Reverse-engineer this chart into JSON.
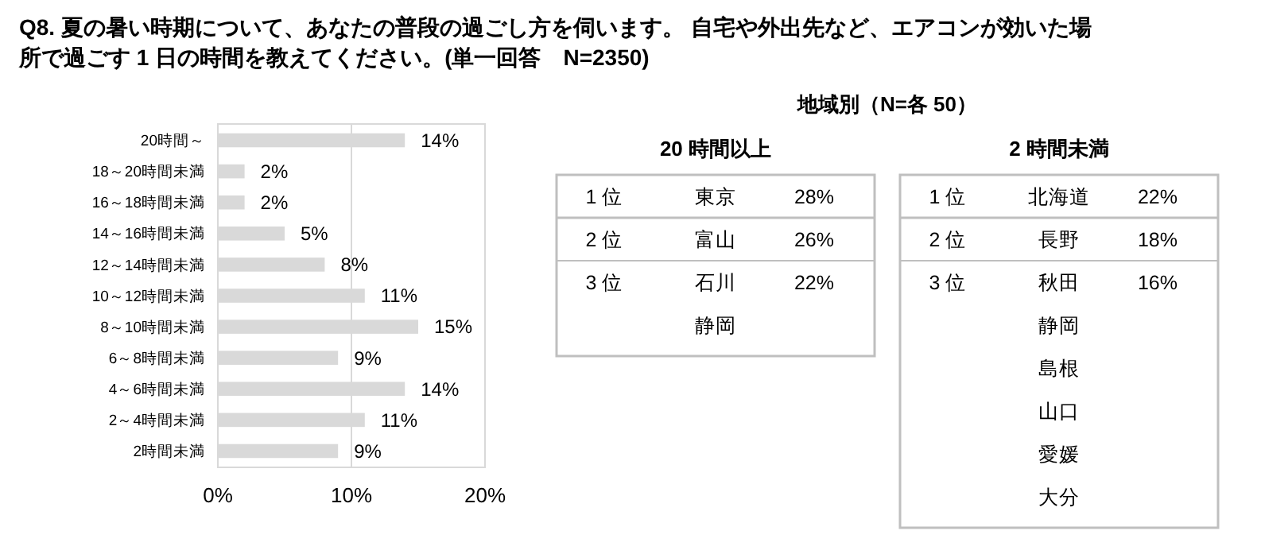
{
  "chart_data": [
    {
      "type": "bar",
      "orientation": "horizontal",
      "title": "Q8. 夏の暑い時期について、あなたの普段の過ごし方を伺います。 自宅や外出先など、エアコンが効いた場所で過ごす 1 日の時間を教えてください。(単一回答　N=2350)",
      "categories": [
        "20時間～",
        "18～20時間未満",
        "16～18時間未満",
        "14～16時間未満",
        "12～14時間未満",
        "10～12時間未満",
        "8～10時間未満",
        "6～8時間未満",
        "4～6時間未満",
        "2～4時間未満",
        "2時間未満"
      ],
      "values": [
        14,
        2,
        2,
        5,
        8,
        11,
        15,
        9,
        14,
        11,
        9
      ],
      "color": "#d9d9d9",
      "value_labels": [
        "14%",
        "2%",
        "2%",
        "5%",
        "8%",
        "11%",
        "15%",
        "9%",
        "14%",
        "11%",
        "9%"
      ],
      "xlim": [
        0,
        20
      ],
      "xticks": [
        {
          "value": 0,
          "label": "0%"
        },
        {
          "value": 10,
          "label": "10%"
        },
        {
          "value": 20,
          "label": "20%"
        }
      ],
      "grid": "x"
    },
    {
      "type": "other",
      "title": "地域別（N=各 50）",
      "subtitle": "20 時間以上",
      "annotations": [
        "1 位",
        "東京",
        "28%",
        "2 位",
        "富山",
        "26%",
        "3 位",
        "石川",
        "22%",
        "静岡"
      ]
    },
    {
      "type": "other",
      "subtitle": "2 時間未満",
      "annotations": [
        "1 位",
        "北海道",
        "22%",
        "2 位",
        "長野",
        "18%",
        "3 位",
        "秋田",
        "16%",
        "静岡",
        "島根",
        "山口",
        "愛媛",
        "大分"
      ]
    }
  ]
}
